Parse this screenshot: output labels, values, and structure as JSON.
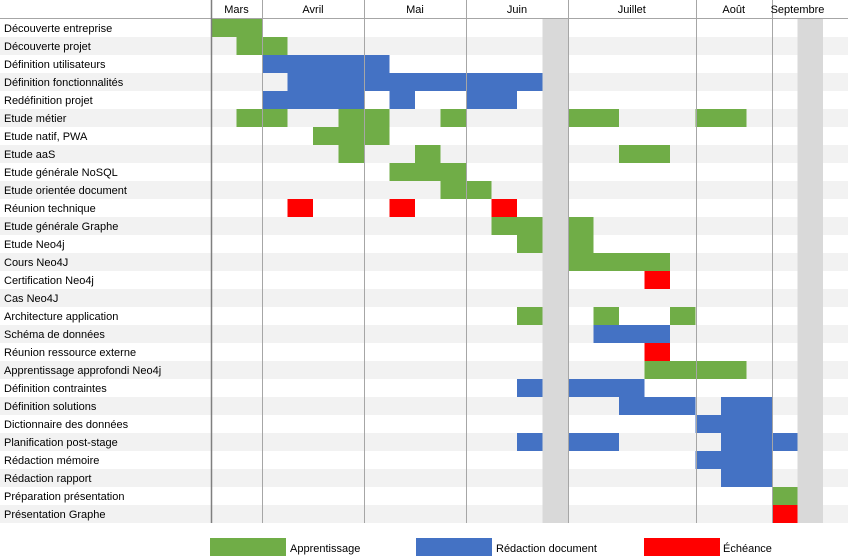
{
  "chart_data": {
    "type": "gantt",
    "title": "",
    "months": [
      "Mars",
      "Avril",
      "Mai",
      "Juin",
      "Juillet",
      "Août",
      "Septembre"
    ],
    "week_count": 24,
    "shaded_weeks": [
      13,
      23
    ],
    "colors": {
      "Apprentissage": "#70ad47",
      "Rédaction document": "#4472c4",
      "Échéance": "#ff0000",
      "shade": "#d9d9d9",
      "row_band": "#f2f2f2"
    },
    "legend": [
      "Apprentissage",
      "Rédaction document",
      "Échéance"
    ],
    "tasks": [
      {
        "label": "Découverte entreprise",
        "segments": [
          {
            "start": 0,
            "end": 2,
            "type": "Apprentissage"
          }
        ]
      },
      {
        "label": "Découverte projet",
        "segments": [
          {
            "start": 1,
            "end": 3,
            "type": "Apprentissage"
          }
        ]
      },
      {
        "label": "Définition utilisateurs",
        "segments": [
          {
            "start": 2,
            "end": 6,
            "type": "Rédaction document"
          },
          {
            "start": 6,
            "end": 7,
            "type": "Rédaction document"
          }
        ]
      },
      {
        "label": "Définition fonctionnalités",
        "segments": [
          {
            "start": 3,
            "end": 10,
            "type": "Rédaction document"
          },
          {
            "start": 10,
            "end": 13,
            "type": "Rédaction document"
          }
        ]
      },
      {
        "label": "Redéfinition projet",
        "segments": [
          {
            "start": 2,
            "end": 3,
            "type": "Rédaction document"
          },
          {
            "start": 3,
            "end": 6,
            "type": "Rédaction document"
          },
          {
            "start": 7,
            "end": 8,
            "type": "Rédaction document"
          },
          {
            "start": 10,
            "end": 12,
            "type": "Rédaction document"
          }
        ]
      },
      {
        "label": "Etude métier",
        "segments": [
          {
            "start": 1,
            "end": 3,
            "type": "Apprentissage"
          },
          {
            "start": 5,
            "end": 7,
            "type": "Apprentissage"
          },
          {
            "start": 9,
            "end": 10,
            "type": "Apprentissage"
          },
          {
            "start": 14,
            "end": 16,
            "type": "Apprentissage"
          },
          {
            "start": 19,
            "end": 21,
            "type": "Apprentissage"
          }
        ]
      },
      {
        "label": "Etude natif, PWA",
        "segments": [
          {
            "start": 4,
            "end": 7,
            "type": "Apprentissage"
          }
        ]
      },
      {
        "label": "Etude aaS",
        "segments": [
          {
            "start": 5,
            "end": 6,
            "type": "Apprentissage"
          },
          {
            "start": 8,
            "end": 9,
            "type": "Apprentissage"
          },
          {
            "start": 16,
            "end": 18,
            "type": "Apprentissage"
          }
        ]
      },
      {
        "label": "Etude générale NoSQL",
        "segments": [
          {
            "start": 7,
            "end": 10,
            "type": "Apprentissage"
          }
        ]
      },
      {
        "label": "Etude orientée document",
        "segments": [
          {
            "start": 9,
            "end": 11,
            "type": "Apprentissage"
          }
        ]
      },
      {
        "label": "Réunion technique",
        "segments": [
          {
            "start": 3,
            "end": 4,
            "type": "Échéance"
          },
          {
            "start": 7,
            "end": 8,
            "type": "Échéance"
          },
          {
            "start": 11,
            "end": 12,
            "type": "Échéance"
          }
        ]
      },
      {
        "label": "Etude générale Graphe",
        "segments": [
          {
            "start": 11,
            "end": 13,
            "type": "Apprentissage"
          },
          {
            "start": 14,
            "end": 15,
            "type": "Apprentissage"
          }
        ]
      },
      {
        "label": "Etude Neo4j",
        "segments": [
          {
            "start": 12,
            "end": 13,
            "type": "Apprentissage"
          },
          {
            "start": 14,
            "end": 15,
            "type": "Apprentissage"
          }
        ]
      },
      {
        "label": "Cours Neo4J",
        "segments": [
          {
            "start": 14,
            "end": 18,
            "type": "Apprentissage"
          }
        ]
      },
      {
        "label": "Certification Neo4j",
        "segments": [
          {
            "start": 17,
            "end": 18,
            "type": "Échéance"
          }
        ]
      },
      {
        "label": "Cas Neo4J",
        "segments": []
      },
      {
        "label": "Architecture application",
        "segments": [
          {
            "start": 12,
            "end": 13,
            "type": "Apprentissage"
          },
          {
            "start": 15,
            "end": 16,
            "type": "Apprentissage"
          },
          {
            "start": 18,
            "end": 19,
            "type": "Apprentissage"
          }
        ]
      },
      {
        "label": "Schéma de données",
        "segments": [
          {
            "start": 15,
            "end": 18,
            "type": "Rédaction document"
          }
        ]
      },
      {
        "label": "Réunion ressource externe",
        "segments": [
          {
            "start": 17,
            "end": 18,
            "type": "Échéance"
          }
        ]
      },
      {
        "label": "Apprentissage approfondi Neo4j",
        "segments": [
          {
            "start": 17,
            "end": 21,
            "type": "Apprentissage"
          }
        ]
      },
      {
        "label": "Définition contraintes",
        "segments": [
          {
            "start": 12,
            "end": 13,
            "type": "Rédaction document"
          },
          {
            "start": 14,
            "end": 17,
            "type": "Rédaction document"
          }
        ]
      },
      {
        "label": "Définition solutions",
        "segments": [
          {
            "start": 16,
            "end": 19,
            "type": "Rédaction document"
          },
          {
            "start": 20,
            "end": 22,
            "type": "Rédaction document"
          }
        ]
      },
      {
        "label": "Dictionnaire des données",
        "segments": [
          {
            "start": 19,
            "end": 22,
            "type": "Rédaction document"
          }
        ]
      },
      {
        "label": "Planification post-stage",
        "segments": [
          {
            "start": 12,
            "end": 13,
            "type": "Rédaction document"
          },
          {
            "start": 14,
            "end": 16,
            "type": "Rédaction document"
          },
          {
            "start": 20,
            "end": 23,
            "type": "Rédaction document"
          }
        ]
      },
      {
        "label": "Rédaction mémoire",
        "segments": [
          {
            "start": 19,
            "end": 22,
            "type": "Rédaction document"
          }
        ]
      },
      {
        "label": "Rédaction rapport",
        "segments": [
          {
            "start": 20,
            "end": 22,
            "type": "Rédaction document"
          }
        ]
      },
      {
        "label": "Préparation présentation",
        "segments": [
          {
            "start": 22,
            "end": 23,
            "type": "Apprentissage"
          }
        ]
      },
      {
        "label": "Présentation Graphe",
        "segments": [
          {
            "start": 22,
            "end": 23,
            "type": "Échéance"
          }
        ]
      }
    ]
  }
}
